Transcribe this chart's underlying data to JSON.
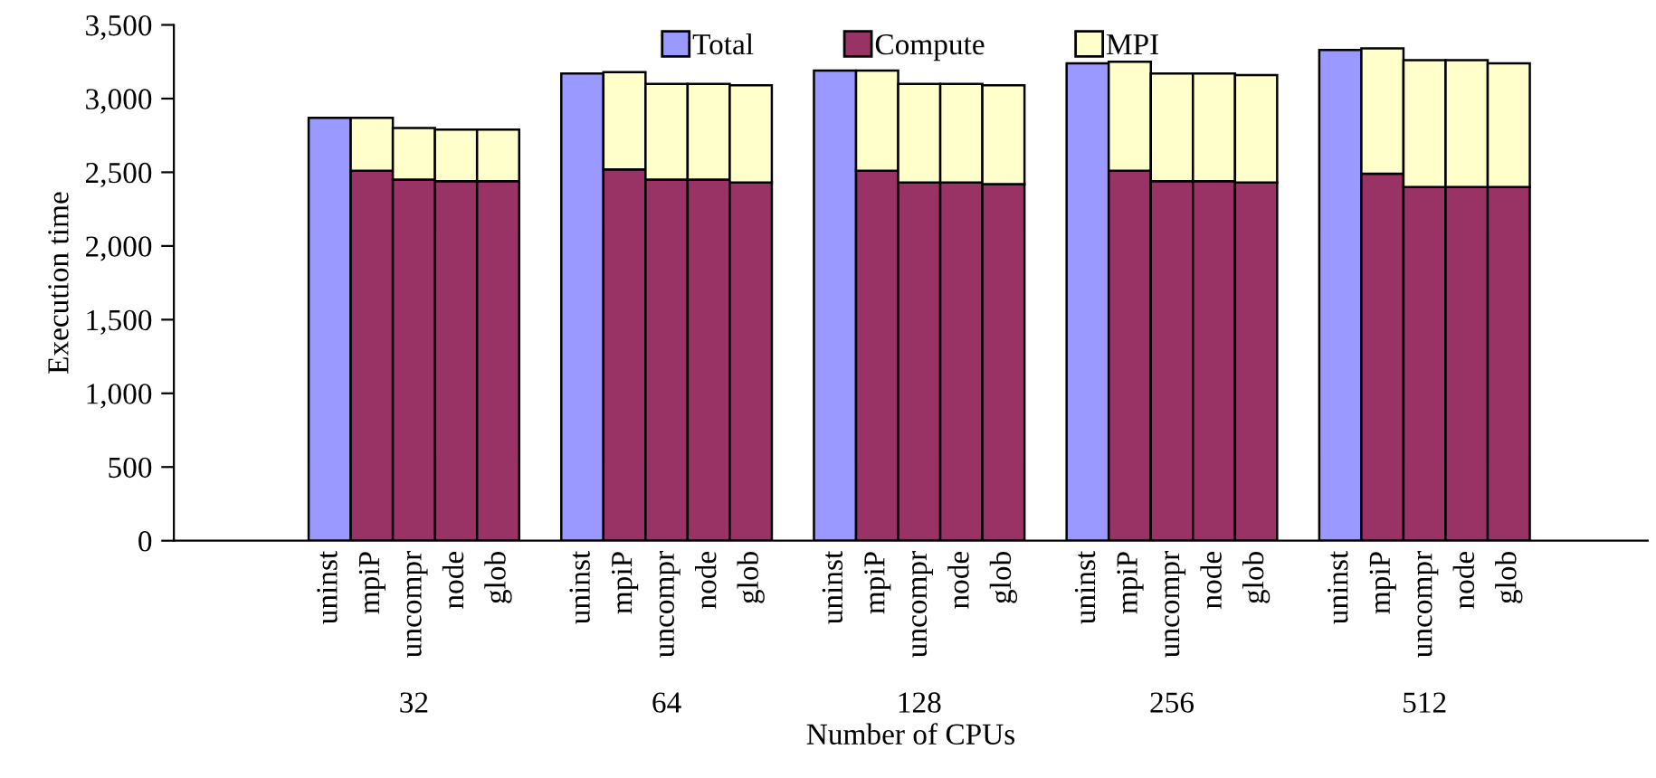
{
  "chart_data": {
    "type": "bar",
    "stacked": true,
    "xlabel": "Number of CPUs",
    "ylabel": "Execution time",
    "categories": [
      "uninst",
      "mpiP",
      "uncompr",
      "node",
      "glob",
      null,
      "uninst",
      "mpiP",
      "uncompr",
      "node",
      "glob",
      null,
      "uninst",
      "mpiP",
      "uncompr",
      "node",
      "glob",
      null,
      "uninst",
      "mpiP",
      "uncompr",
      "node",
      "glob",
      null,
      "uninst",
      "mpiP",
      "uncompr",
      "node",
      "glob"
    ],
    "series": [
      {
        "name": "Total",
        "color": "#9999ff",
        "values": [
          2870,
          null,
          null,
          null,
          null,
          null,
          3170,
          null,
          null,
          null,
          null,
          null,
          3190,
          null,
          null,
          null,
          null,
          null,
          3240,
          null,
          null,
          null,
          null,
          null,
          3330,
          null,
          null,
          null,
          null
        ]
      },
      {
        "name": "Compute",
        "color": "#993366",
        "values": [
          null,
          2510,
          2450,
          2440,
          2440,
          null,
          null,
          2520,
          2450,
          2450,
          2430,
          null,
          null,
          2510,
          2430,
          2430,
          2420,
          null,
          null,
          2510,
          2440,
          2440,
          2430,
          null,
          null,
          2490,
          2400,
          2400,
          2400
        ]
      },
      {
        "name": "MPI",
        "color": "#ffffcc",
        "values": [
          null,
          360,
          350,
          350,
          350,
          null,
          null,
          660,
          650,
          650,
          660,
          null,
          null,
          680,
          670,
          670,
          670,
          null,
          null,
          740,
          730,
          730,
          730,
          null,
          null,
          850,
          860,
          860,
          840
        ]
      }
    ],
    "annotations": [
      "32",
      "64",
      "128",
      "256",
      "512"
    ],
    "ylim": [
      0,
      3500
    ],
    "yticks": [
      {
        "value": 0,
        "label": "0"
      },
      {
        "value": 500,
        "label": "500"
      },
      {
        "value": 1000,
        "label": "1,000"
      },
      {
        "value": 1500,
        "label": "1,500"
      },
      {
        "value": 2000,
        "label": "2,000"
      },
      {
        "value": 2500,
        "label": "2,500"
      },
      {
        "value": 3000,
        "label": "3,000"
      },
      {
        "value": 3500,
        "label": "3,500"
      }
    ],
    "legend": "top"
  }
}
